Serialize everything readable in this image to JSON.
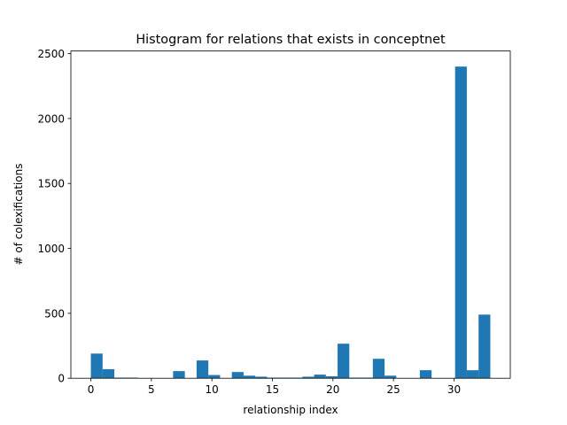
{
  "chart_data": {
    "type": "histogram",
    "title": "Histogram for relations that exists in conceptnet",
    "x_label": "relationship index",
    "y_label": "# of colexifications",
    "bins": [
      0,
      0.9706,
      1.9412,
      2.9118,
      3.8824,
      4.8529,
      5.8235,
      6.7941,
      7.7647,
      8.7353,
      9.7059,
      10.6765,
      11.6471,
      12.6176,
      13.5882,
      14.5588,
      15.5294,
      16.5,
      17.4706,
      18.4412,
      19.4118,
      20.3824,
      21.3529,
      22.3235,
      23.2941,
      24.2647,
      25.2353,
      26.2059,
      27.1765,
      28.1471,
      29.1176,
      30.0882,
      31.0588,
      32.0294,
      33
    ],
    "values": [
      190,
      70,
      5,
      5,
      0,
      0,
      0,
      55,
      0,
      137,
      25,
      0,
      48,
      20,
      12,
      5,
      5,
      5,
      12,
      28,
      15,
      266,
      5,
      5,
      150,
      20,
      0,
      0,
      62,
      0,
      0,
      2400,
      62,
      490
    ],
    "color": "#1f77b4",
    "xlim": [
      -1.65,
      34.65
    ],
    "ylim": [
      0,
      2520
    ],
    "xticks": [
      0,
      5,
      10,
      15,
      20,
      25,
      30
    ],
    "yticks": [
      0,
      500,
      1000,
      1500,
      2000,
      2500
    ]
  }
}
